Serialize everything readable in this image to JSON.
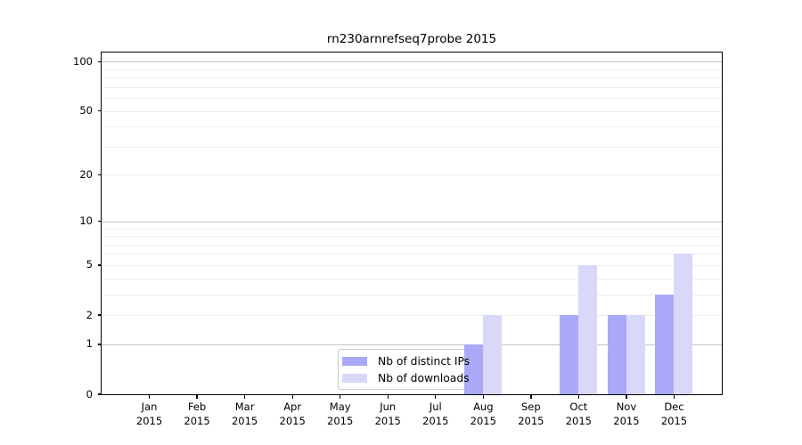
{
  "chart_data": {
    "type": "bar",
    "title": "rn230arnrefseq7probe 2015",
    "categories": [
      {
        "month": "Jan",
        "year": "2015"
      },
      {
        "month": "Feb",
        "year": "2015"
      },
      {
        "month": "Mar",
        "year": "2015"
      },
      {
        "month": "Apr",
        "year": "2015"
      },
      {
        "month": "May",
        "year": "2015"
      },
      {
        "month": "Jun",
        "year": "2015"
      },
      {
        "month": "Jul",
        "year": "2015"
      },
      {
        "month": "Aug",
        "year": "2015"
      },
      {
        "month": "Sep",
        "year": "2015"
      },
      {
        "month": "Oct",
        "year": "2015"
      },
      {
        "month": "Nov",
        "year": "2015"
      },
      {
        "month": "Dec",
        "year": "2015"
      }
    ],
    "series": [
      {
        "name": "Nb of distinct IPs",
        "color": "#a9a9f8",
        "values": [
          0,
          0,
          0,
          0,
          0,
          0,
          0,
          1,
          0,
          2,
          2,
          3
        ]
      },
      {
        "name": "Nb of downloads",
        "color": "#d8d8f9",
        "values": [
          0,
          0,
          0,
          0,
          0,
          0,
          0,
          2,
          0,
          5,
          2,
          6
        ]
      }
    ],
    "xlabel": "",
    "ylabel": "",
    "y_axis": {
      "scale": "log10(1+value)",
      "ylim": [
        0,
        113.6
      ],
      "tick_values": [
        100,
        50,
        20,
        10,
        5,
        2,
        1,
        0
      ],
      "tick_labels": [
        "100",
        "50",
        "20",
        "10",
        "5",
        "2",
        "1",
        "0"
      ],
      "major_gridlines": [
        1,
        10,
        100
      ],
      "minor_gridlines": [
        2,
        3,
        4,
        5,
        6,
        7,
        8,
        9,
        20,
        30,
        40,
        50,
        60,
        70,
        80,
        90
      ]
    },
    "grid": true,
    "legend": {
      "position": "lower-center",
      "entries": [
        "Nb of distinct IPs",
        "Nb of downloads"
      ]
    }
  },
  "colors": {
    "distinct_ips_bar": "#a9a9f8",
    "downloads_bar": "#d8d8f9",
    "major_gridline": "#c3c3c3",
    "minor_gridline": "#ededed",
    "frame": "#000000",
    "legend_border": "#cbcbcb"
  }
}
